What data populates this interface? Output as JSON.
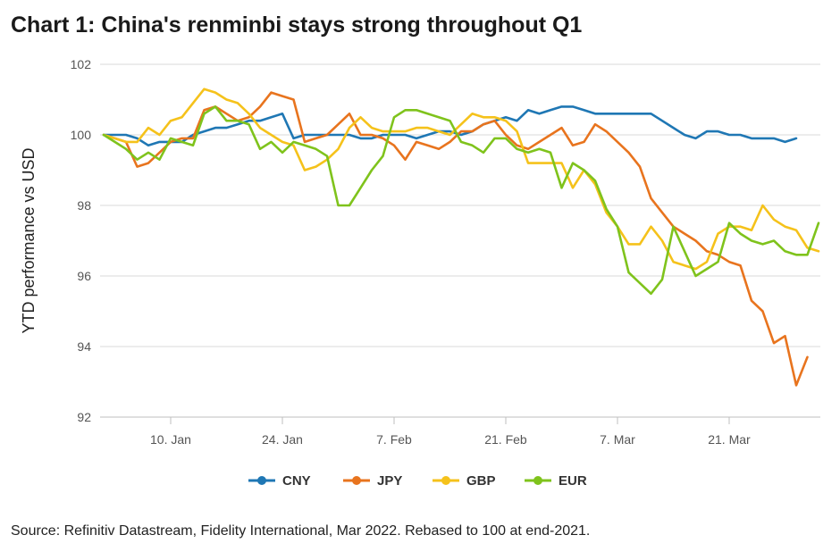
{
  "title": "Chart 1: China's renminbi stays strong throughout Q1",
  "source": "Source: Refinitiv Datastream, Fidelity International, Mar 2022. Rebased to 100 at end-2021.",
  "chart_data": {
    "type": "line",
    "ylabel": "YTD performance vs USD",
    "xlabel": "",
    "ylim": [
      92,
      102
    ],
    "yticks": [
      92,
      94,
      96,
      98,
      100,
      102
    ],
    "grid": true,
    "legend_position": "bottom",
    "x_tick_labels": [
      "10. Jan",
      "24. Jan",
      "7. Feb",
      "21. Feb",
      "7. Mar",
      "21. Mar"
    ],
    "x_tick_index": [
      6,
      16,
      26,
      36,
      46,
      56
    ],
    "series": [
      {
        "name": "CNY",
        "color": "#1f77b4",
        "values": [
          100,
          100,
          100,
          99.9,
          99.7,
          99.8,
          99.8,
          99.8,
          100.0,
          100.1,
          100.2,
          100.2,
          100.3,
          100.4,
          100.4,
          100.5,
          100.6,
          99.9,
          100.0,
          100.0,
          100.0,
          100.0,
          100.0,
          99.9,
          99.9,
          100.0,
          100.0,
          100.0,
          99.9,
          100.0,
          100.1,
          100.1,
          100.0,
          100.1,
          100.3,
          100.4,
          100.5,
          100.4,
          100.7,
          100.6,
          100.7,
          100.8,
          100.8,
          100.7,
          100.6,
          100.6,
          100.6,
          100.6,
          100.6,
          100.6,
          100.4,
          100.2,
          100.0,
          99.9,
          100.1,
          100.1,
          100.0,
          100.0,
          99.9,
          99.9,
          99.9,
          99.8,
          99.9
        ]
      },
      {
        "name": "JPY",
        "color": "#e8741e",
        "values": [
          100,
          99.9,
          99.8,
          99.1,
          99.2,
          99.5,
          99.8,
          99.9,
          99.9,
          100.7,
          100.8,
          100.6,
          100.4,
          100.5,
          100.8,
          101.2,
          101.1,
          101.0,
          99.8,
          99.9,
          100.0,
          100.3,
          100.6,
          100.0,
          100.0,
          99.9,
          99.7,
          99.3,
          99.8,
          99.7,
          99.6,
          99.8,
          100.1,
          100.1,
          100.3,
          100.4,
          100.0,
          99.7,
          99.6,
          99.8,
          100.0,
          100.2,
          99.7,
          99.8,
          100.3,
          100.1,
          99.8,
          99.5,
          99.1,
          98.2,
          97.8,
          97.4,
          97.2,
          97.0,
          96.7,
          96.6,
          96.4,
          96.3,
          95.3,
          95.0,
          94.1,
          94.3,
          92.9,
          93.7
        ]
      },
      {
        "name": "GBP",
        "color": "#f5c21b",
        "values": [
          100,
          99.9,
          99.8,
          99.8,
          100.2,
          100.0,
          100.4,
          100.5,
          100.9,
          101.3,
          101.2,
          101.0,
          100.9,
          100.6,
          100.2,
          100.0,
          99.8,
          99.7,
          99.0,
          99.1,
          99.3,
          99.6,
          100.2,
          100.5,
          100.2,
          100.1,
          100.1,
          100.1,
          100.2,
          100.2,
          100.1,
          100.0,
          100.3,
          100.6,
          100.5,
          100.5,
          100.4,
          100.1,
          99.2,
          99.2,
          99.2,
          99.2,
          98.5,
          99.0,
          98.6,
          97.8,
          97.4,
          96.9,
          96.9,
          97.4,
          97.0,
          96.4,
          96.3,
          96.2,
          96.4,
          97.2,
          97.4,
          97.4,
          97.3,
          98.0,
          97.6,
          97.4,
          97.3,
          96.8,
          96.7
        ]
      },
      {
        "name": "EUR",
        "color": "#7fc31c",
        "values": [
          100,
          99.8,
          99.6,
          99.3,
          99.5,
          99.3,
          99.9,
          99.8,
          99.7,
          100.6,
          100.8,
          100.4,
          100.4,
          100.3,
          99.6,
          99.8,
          99.5,
          99.8,
          99.7,
          99.6,
          99.4,
          98.0,
          98.0,
          98.5,
          99.0,
          99.4,
          100.5,
          100.7,
          100.7,
          100.6,
          100.5,
          100.4,
          99.8,
          99.7,
          99.5,
          99.9,
          99.9,
          99.6,
          99.5,
          99.6,
          99.5,
          98.5,
          99.2,
          99.0,
          98.7,
          97.9,
          97.4,
          96.1,
          95.8,
          95.5,
          95.9,
          97.4,
          96.7,
          96.0,
          96.2,
          96.4,
          97.5,
          97.2,
          97.0,
          96.9,
          97.0,
          96.7,
          96.6,
          96.6,
          97.5
        ]
      }
    ]
  }
}
